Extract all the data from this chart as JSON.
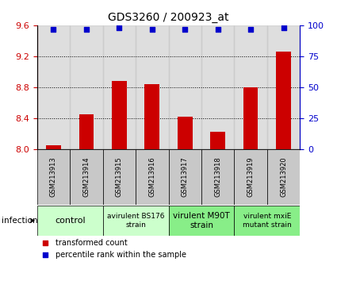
{
  "title": "GDS3260 / 200923_at",
  "samples": [
    "GSM213913",
    "GSM213914",
    "GSM213915",
    "GSM213916",
    "GSM213917",
    "GSM213918",
    "GSM213919",
    "GSM213920"
  ],
  "bar_values": [
    8.05,
    8.45,
    8.88,
    8.84,
    8.42,
    8.22,
    8.8,
    9.26
  ],
  "percentile_values": [
    97,
    97,
    98,
    97,
    97,
    97,
    97,
    98
  ],
  "bar_color": "#cc0000",
  "dot_color": "#0000cc",
  "ylim_left": [
    8.0,
    9.6
  ],
  "ylim_right": [
    0,
    100
  ],
  "yticks_left": [
    8.0,
    8.4,
    8.8,
    9.2,
    9.6
  ],
  "yticks_right": [
    0,
    25,
    50,
    75,
    100
  ],
  "grid_lines": [
    8.4,
    8.8,
    9.2
  ],
  "group_configs": [
    {
      "label": "control",
      "cols": [
        0,
        1
      ],
      "bg": "#ccffcc",
      "fontsize": 8
    },
    {
      "label": "avirulent BS176\nstrain",
      "cols": [
        2,
        3
      ],
      "bg": "#ccffcc",
      "fontsize": 6.5
    },
    {
      "label": "virulent M90T\nstrain",
      "cols": [
        4,
        5
      ],
      "bg": "#88ee88",
      "fontsize": 7.5
    },
    {
      "label": "virulent mxiE\nmutant strain",
      "cols": [
        6,
        7
      ],
      "bg": "#88ee88",
      "fontsize": 6.5
    }
  ],
  "infection_label": "infection",
  "legend_red_label": "transformed count",
  "legend_blue_label": "percentile rank within the sample",
  "tick_color_left": "#cc0000",
  "tick_color_right": "#0000cc",
  "bg_sample_color": "#c8c8c8",
  "title_fontsize": 10,
  "axis_fontsize": 8
}
